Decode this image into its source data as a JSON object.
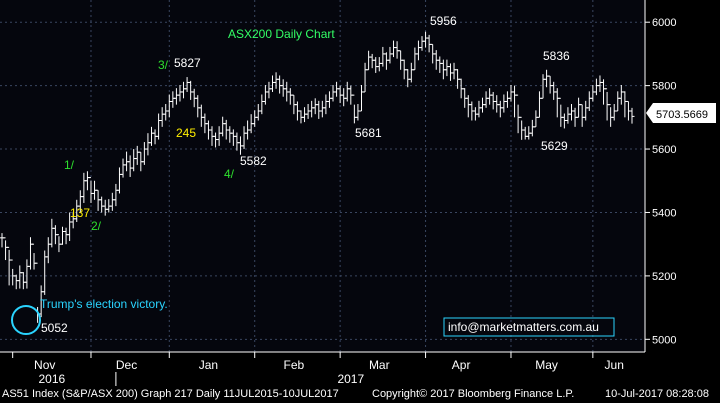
{
  "chart_data": {
    "type": "ohlc",
    "title": "ASX200 Daily Chart",
    "y_ticks": [
      5000,
      5200,
      5400,
      5600,
      5800,
      6000
    ],
    "ylim": [
      4960,
      6070
    ],
    "x_month_labels": [
      "Nov",
      "Dec",
      "Jan",
      "Feb",
      "Mar",
      "Apr",
      "May",
      "Jun"
    ],
    "x_year_labels": [
      "2016",
      "2017"
    ],
    "last_price": "5703.5669",
    "series": [
      {
        "close": [
          5320,
          5290,
          5250,
          5200,
          5185,
          5210,
          5180,
          5230,
          5300,
          5240,
          5080,
          5150,
          5260,
          5300,
          5350,
          5330,
          5300,
          5340,
          5330,
          5370,
          5380,
          5420,
          5450,
          5500,
          5510,
          5460,
          5470,
          5440,
          5420,
          5410,
          5420,
          5440,
          5470,
          5520,
          5550,
          5560,
          5540,
          5570,
          5590,
          5560,
          5600,
          5620,
          5650,
          5640,
          5690,
          5710,
          5720,
          5750,
          5760,
          5770,
          5780,
          5790,
          5810,
          5780,
          5760,
          5730,
          5700,
          5680,
          5660,
          5640,
          5630,
          5650,
          5680,
          5660,
          5650,
          5640,
          5620,
          5610,
          5650,
          5660,
          5680,
          5700,
          5720,
          5750,
          5780,
          5790,
          5810,
          5820,
          5800,
          5790,
          5780,
          5770,
          5740,
          5720,
          5700,
          5710,
          5720,
          5730,
          5740,
          5720,
          5730,
          5750,
          5760,
          5780,
          5790,
          5770,
          5760,
          5790,
          5770,
          5700,
          5720,
          5780,
          5850,
          5890,
          5880,
          5860,
          5870,
          5900,
          5880,
          5900,
          5920,
          5910,
          5880,
          5850,
          5820,
          5850,
          5900,
          5920,
          5940,
          5950,
          5930,
          5900,
          5880,
          5870,
          5850,
          5860,
          5840,
          5850,
          5820,
          5790,
          5760,
          5740,
          5720,
          5710,
          5730,
          5740,
          5760,
          5770,
          5750,
          5740,
          5730,
          5750,
          5760,
          5780,
          5770,
          5700,
          5660,
          5640,
          5650,
          5670,
          5700,
          5760,
          5820,
          5830,
          5800,
          5780,
          5760,
          5700,
          5690,
          5710,
          5720,
          5700,
          5740,
          5700,
          5730,
          5760,
          5780,
          5800,
          5810,
          5790,
          5740,
          5700,
          5720,
          5760,
          5780,
          5750,
          5720,
          5703
        ],
        "high": [
          5335,
          5312,
          5282,
          5222,
          5204,
          5233,
          5212,
          5252,
          5322,
          5272,
          5102,
          5170,
          5280,
          5322,
          5380,
          5360,
          5325,
          5355,
          5352,
          5400,
          5402,
          5440,
          5470,
          5525,
          5530,
          5500,
          5500,
          5470,
          5450,
          5440,
          5442,
          5462,
          5490,
          5542,
          5570,
          5592,
          5580,
          5600,
          5610,
          5590,
          5622,
          5650,
          5670,
          5662,
          5712,
          5732,
          5742,
          5772,
          5782,
          5792,
          5802,
          5812,
          5827,
          5815,
          5790,
          5770,
          5740,
          5712,
          5690,
          5672,
          5652,
          5672,
          5702,
          5692,
          5672,
          5662,
          5652,
          5640,
          5672,
          5690,
          5710,
          5722,
          5742,
          5772,
          5802,
          5812,
          5832,
          5842,
          5832,
          5820,
          5812,
          5792,
          5770,
          5750,
          5722,
          5732,
          5742,
          5752,
          5760,
          5752,
          5752,
          5772,
          5782,
          5802,
          5812,
          5800,
          5792,
          5812,
          5800,
          5740,
          5742,
          5802,
          5872,
          5910,
          5900,
          5890,
          5890,
          5922,
          5905,
          5922,
          5942,
          5940,
          5910,
          5882,
          5852,
          5872,
          5920,
          5942,
          5956,
          5970,
          5960,
          5930,
          5912,
          5892,
          5882,
          5882,
          5870,
          5872,
          5852,
          5822,
          5792,
          5770,
          5750,
          5732,
          5752,
          5762,
          5782,
          5792,
          5780,
          5770,
          5752,
          5772,
          5782,
          5802,
          5800,
          5740,
          5690,
          5670,
          5672,
          5692,
          5722,
          5782,
          5836,
          5850,
          5830,
          5812,
          5792,
          5740,
          5712,
          5732,
          5742,
          5730,
          5762,
          5740,
          5752,
          5782,
          5802,
          5822,
          5832,
          5820,
          5780,
          5732,
          5742,
          5782,
          5802,
          5782,
          5750,
          5730
        ],
        "low": [
          5290,
          5250,
          5170,
          5170,
          5158,
          5160,
          5158,
          5160,
          5220,
          5220,
          5052,
          5070,
          5140,
          5240,
          5290,
          5300,
          5275,
          5298,
          5300,
          5310,
          5350,
          5370,
          5400,
          5430,
          5470,
          5430,
          5440,
          5405,
          5400,
          5390,
          5400,
          5405,
          5420,
          5460,
          5510,
          5530,
          5512,
          5530,
          5550,
          5530,
          5550,
          5580,
          5610,
          5615,
          5630,
          5670,
          5690,
          5700,
          5730,
          5740,
          5750,
          5760,
          5780,
          5755,
          5732,
          5700,
          5670,
          5650,
          5630,
          5610,
          5605,
          5610,
          5640,
          5630,
          5620,
          5610,
          5595,
          5582,
          5600,
          5630,
          5650,
          5670,
          5690,
          5710,
          5740,
          5760,
          5780,
          5790,
          5775,
          5765,
          5750,
          5740,
          5710,
          5690,
          5681,
          5685,
          5695,
          5700,
          5710,
          5695,
          5700,
          5710,
          5730,
          5750,
          5765,
          5745,
          5735,
          5750,
          5740,
          5681,
          5690,
          5720,
          5780,
          5850,
          5855,
          5840,
          5845,
          5860,
          5850,
          5870,
          5890,
          5885,
          5850,
          5820,
          5795,
          5810,
          5850,
          5880,
          5910,
          5920,
          5905,
          5870,
          5850,
          5840,
          5820,
          5830,
          5815,
          5820,
          5790,
          5760,
          5730,
          5700,
          5690,
          5690,
          5700,
          5715,
          5730,
          5740,
          5725,
          5715,
          5700,
          5715,
          5730,
          5750,
          5700,
          5650,
          5629,
          5630,
          5630,
          5640,
          5670,
          5700,
          5760,
          5795,
          5775,
          5755,
          5700,
          5670,
          5665,
          5680,
          5690,
          5670,
          5700,
          5670,
          5690,
          5720,
          5750,
          5770,
          5780,
          5740,
          5690,
          5670,
          5690,
          5720,
          5740,
          5700,
          5690,
          5680
        ]
      }
    ],
    "annotations": [
      {
        "text": "3/",
        "color": "#2ee02e"
      },
      {
        "text": "5827",
        "color": "#ffffff"
      },
      {
        "text": "5956",
        "color": "#ffffff"
      },
      {
        "text": "5836",
        "color": "#ffffff"
      },
      {
        "text": "245",
        "color": "#ffee00"
      },
      {
        "text": "5681",
        "color": "#ffffff"
      },
      {
        "text": "5582",
        "color": "#ffffff"
      },
      {
        "text": "4/",
        "color": "#2ee02e"
      },
      {
        "text": "5629",
        "color": "#ffffff"
      },
      {
        "text": "1/",
        "color": "#2ee02e"
      },
      {
        "text": "137",
        "color": "#ffee00"
      },
      {
        "text": "2/",
        "color": "#2ee02e"
      },
      {
        "text": "Trump's election victory.",
        "color": "#2ad4ff"
      },
      {
        "text": "5052",
        "color": "#ffffff"
      }
    ],
    "watermark": "info@marketmatters.com.au"
  },
  "colors": {
    "background": "#000000",
    "plot_background": "#05060d",
    "bars": "#ffffff",
    "grid": "#3a4660",
    "title": "#33ff66",
    "circle": "#2ad4ff"
  },
  "footer": {
    "left": "AS51 Index (S&P/ASX 200) Graph 217  Daily 11JUL2015-10JUL2017",
    "middle": "Copyright© 2017 Bloomberg Finance L.P.",
    "right": "10-Jul-2017 08:28:08"
  }
}
